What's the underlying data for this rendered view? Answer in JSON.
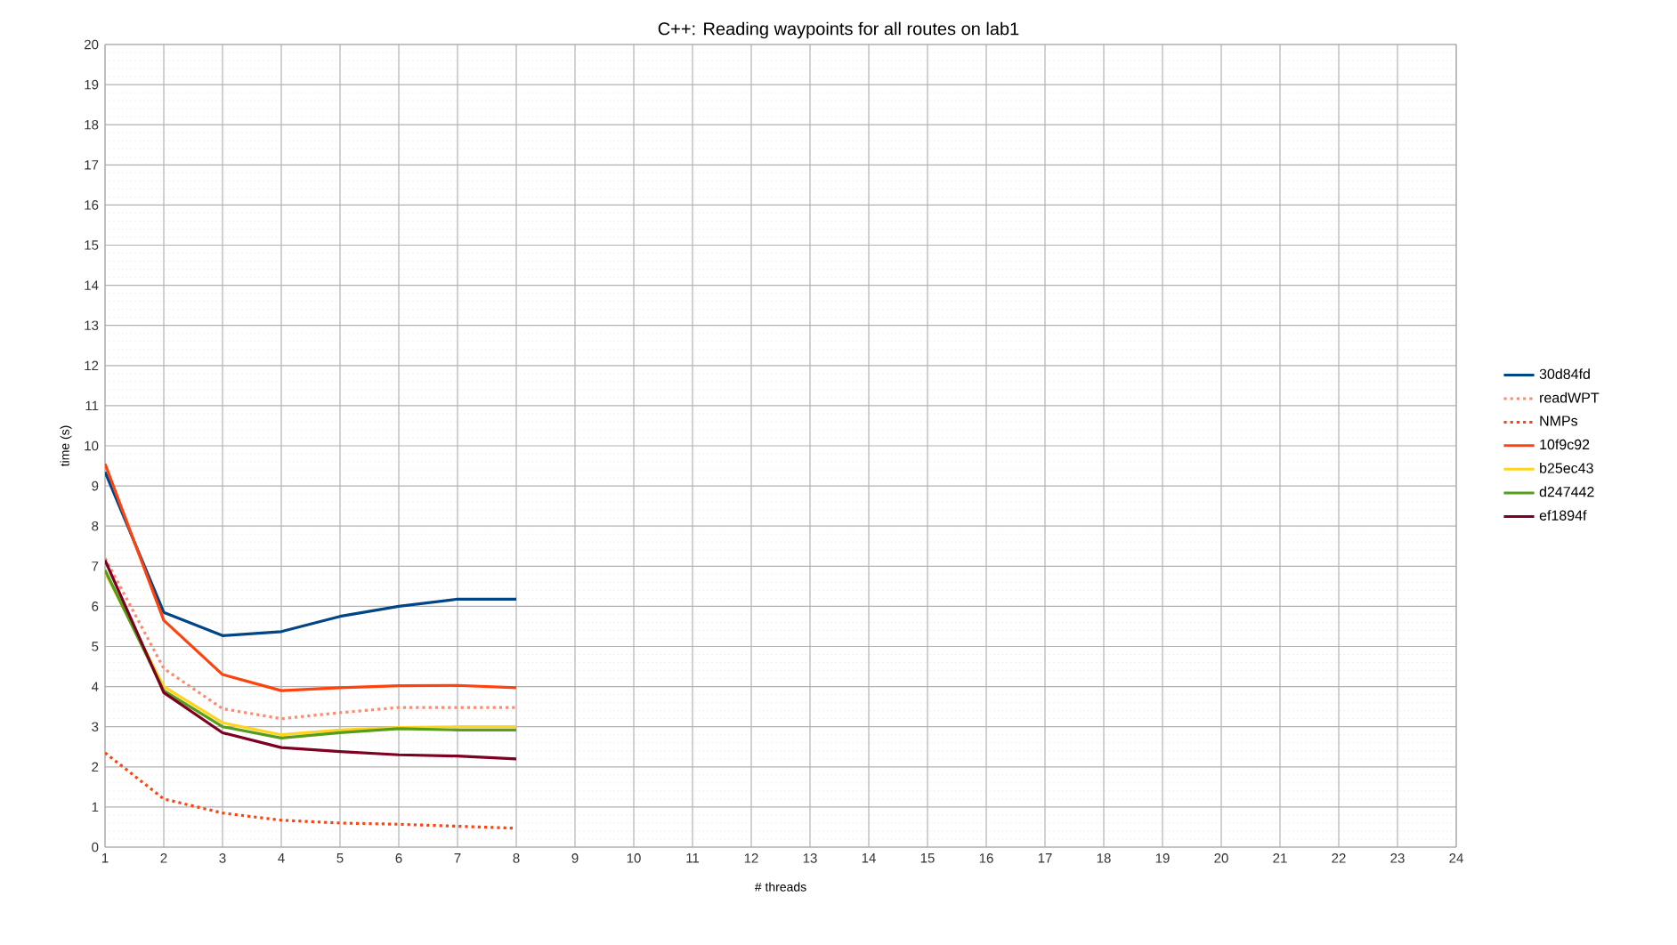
{
  "chart_data": {
    "type": "line",
    "title": "C++: Reading waypoints for all routes on lab1",
    "xlabel": "# threads",
    "ylabel": "time (s)",
    "x": [
      1,
      2,
      3,
      4,
      5,
      6,
      7,
      8
    ],
    "xlim": [
      1,
      24
    ],
    "xticks": [
      1,
      2,
      3,
      4,
      5,
      6,
      7,
      8,
      9,
      10,
      11,
      12,
      13,
      14,
      15,
      16,
      17,
      18,
      19,
      20,
      21,
      22,
      23,
      24
    ],
    "ylim": [
      0,
      20
    ],
    "yticks": [
      0,
      1,
      2,
      3,
      4,
      5,
      6,
      7,
      8,
      9,
      10,
      11,
      12,
      13,
      14,
      15,
      16,
      17,
      18,
      19,
      20
    ],
    "grid": true,
    "legend": "right",
    "marker": "none",
    "series": [
      {
        "name": "30d84fd",
        "color": "#004586",
        "line_style": "solid",
        "values": [
          9.35,
          5.85,
          5.27,
          5.37,
          5.75,
          6.0,
          6.18,
          6.18
        ]
      },
      {
        "name": "readWPT",
        "color": "#ff8a70",
        "line_style": "dotted",
        "values": [
          7.2,
          4.45,
          3.45,
          3.2,
          3.35,
          3.48,
          3.48,
          3.48
        ]
      },
      {
        "name": "NMPs",
        "color": "#ff420e",
        "line_style": "dotted",
        "values": [
          2.35,
          1.2,
          0.85,
          0.67,
          0.6,
          0.57,
          0.52,
          0.47
        ]
      },
      {
        "name": "10f9c92",
        "color": "#ff420e",
        "line_style": "solid",
        "values": [
          9.55,
          5.65,
          4.3,
          3.9,
          3.97,
          4.02,
          4.03,
          3.97
        ]
      },
      {
        "name": "b25ec43",
        "color": "#ffd320",
        "line_style": "solid",
        "values": [
          6.85,
          4.0,
          3.1,
          2.8,
          2.92,
          2.98,
          3.0,
          3.0
        ]
      },
      {
        "name": "d247442",
        "color": "#579d1c",
        "line_style": "solid",
        "values": [
          6.9,
          3.9,
          3.0,
          2.72,
          2.85,
          2.95,
          2.92,
          2.92
        ]
      },
      {
        "name": "ef1894f",
        "color": "#7e0021",
        "line_style": "solid",
        "values": [
          7.15,
          3.85,
          2.85,
          2.48,
          2.38,
          2.3,
          2.27,
          2.2
        ]
      }
    ]
  }
}
